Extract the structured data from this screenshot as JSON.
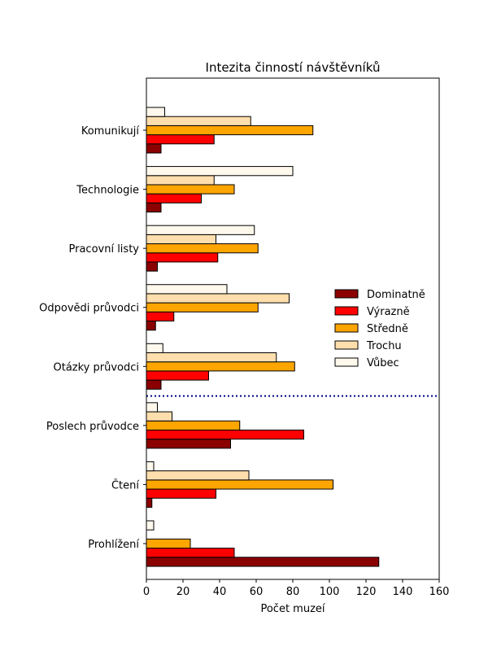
{
  "chart_data": {
    "type": "bar",
    "orientation": "horizontal",
    "title": "Intezita činností návštěvníků",
    "xlabel": "Počet muzeí",
    "ylabel": "",
    "xlim": [
      0,
      160
    ],
    "xticks": [
      "0",
      "20",
      "40",
      "60",
      "80",
      "100",
      "120",
      "140",
      "160"
    ],
    "grid": false,
    "legend_position": "right",
    "categories": [
      "Prohlížení",
      "Čtení",
      "Poslech průvodce",
      "Otázky průvodci",
      "Odpovědi průvodci",
      "Pracovní listy",
      "Technologie",
      "Komunikují"
    ],
    "separator": {
      "type": "dotted-line",
      "between": [
        "Poslech průvodce",
        "Otázky průvodci"
      ],
      "color": "#000080"
    },
    "series": [
      {
        "name": "Dominatně",
        "color": "#8b0000",
        "values": [
          127,
          3,
          46,
          8,
          5,
          6,
          8,
          8
        ]
      },
      {
        "name": "Výrazně",
        "color": "#ff0000",
        "values": [
          48,
          38,
          86,
          34,
          15,
          39,
          30,
          37
        ]
      },
      {
        "name": "Středně",
        "color": "#ffa500",
        "values": [
          24,
          102,
          51,
          81,
          61,
          61,
          48,
          91
        ]
      },
      {
        "name": "Trochu",
        "color": "#ffdead",
        "values": [
          0,
          56,
          14,
          71,
          78,
          38,
          37,
          57
        ]
      },
      {
        "name": "Vůbec",
        "color": "#fff8ec",
        "values": [
          4,
          4,
          6,
          9,
          44,
          59,
          80,
          10
        ]
      }
    ]
  }
}
